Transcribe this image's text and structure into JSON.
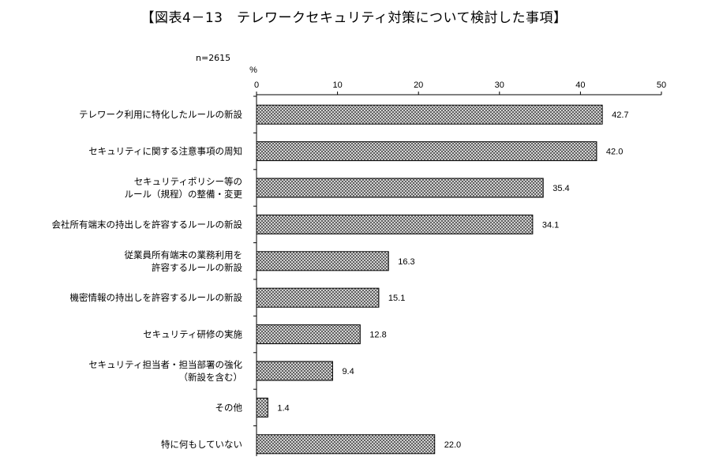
{
  "title": "【図表4－13　テレワークセキュリティ対策について検討した事項】",
  "n_label": "n=2615",
  "chart_data": {
    "type": "bar",
    "orientation": "horizontal",
    "unit_label": "%",
    "xlim": [
      0,
      50
    ],
    "ticks": [
      "0",
      "10",
      "20",
      "30",
      "40",
      "50"
    ],
    "categories": [
      [
        "テレワーク利用に特化したルールの新設"
      ],
      [
        "セキュリティに関する注意事項の周知"
      ],
      [
        "セキュリティポリシー等の",
        "ルール（規程）の整備・変更"
      ],
      [
        "会社所有端末の持出しを許容するルールの新設"
      ],
      [
        "従業員所有端末の業務利用を",
        "許容するルールの新設"
      ],
      [
        "機密情報の持出しを許容するルールの新設"
      ],
      [
        "セキュリティ研修の実施"
      ],
      [
        "セキュリティ担当者・担当部署の強化",
        "（新設を含む）"
      ],
      [
        "その他"
      ],
      [
        "特に何もしていない"
      ]
    ],
    "values": [
      42.7,
      42.0,
      35.4,
      34.1,
      16.3,
      15.1,
      12.8,
      9.4,
      1.4,
      22.0
    ],
    "value_labels": [
      "42.7",
      "42.0",
      "35.4",
      "34.1",
      "16.3",
      "15.1",
      "12.8",
      "9.4",
      "1.4",
      "22.0"
    ],
    "bar_fill": "#9a9a9a",
    "bar_stroke": "#000000"
  }
}
